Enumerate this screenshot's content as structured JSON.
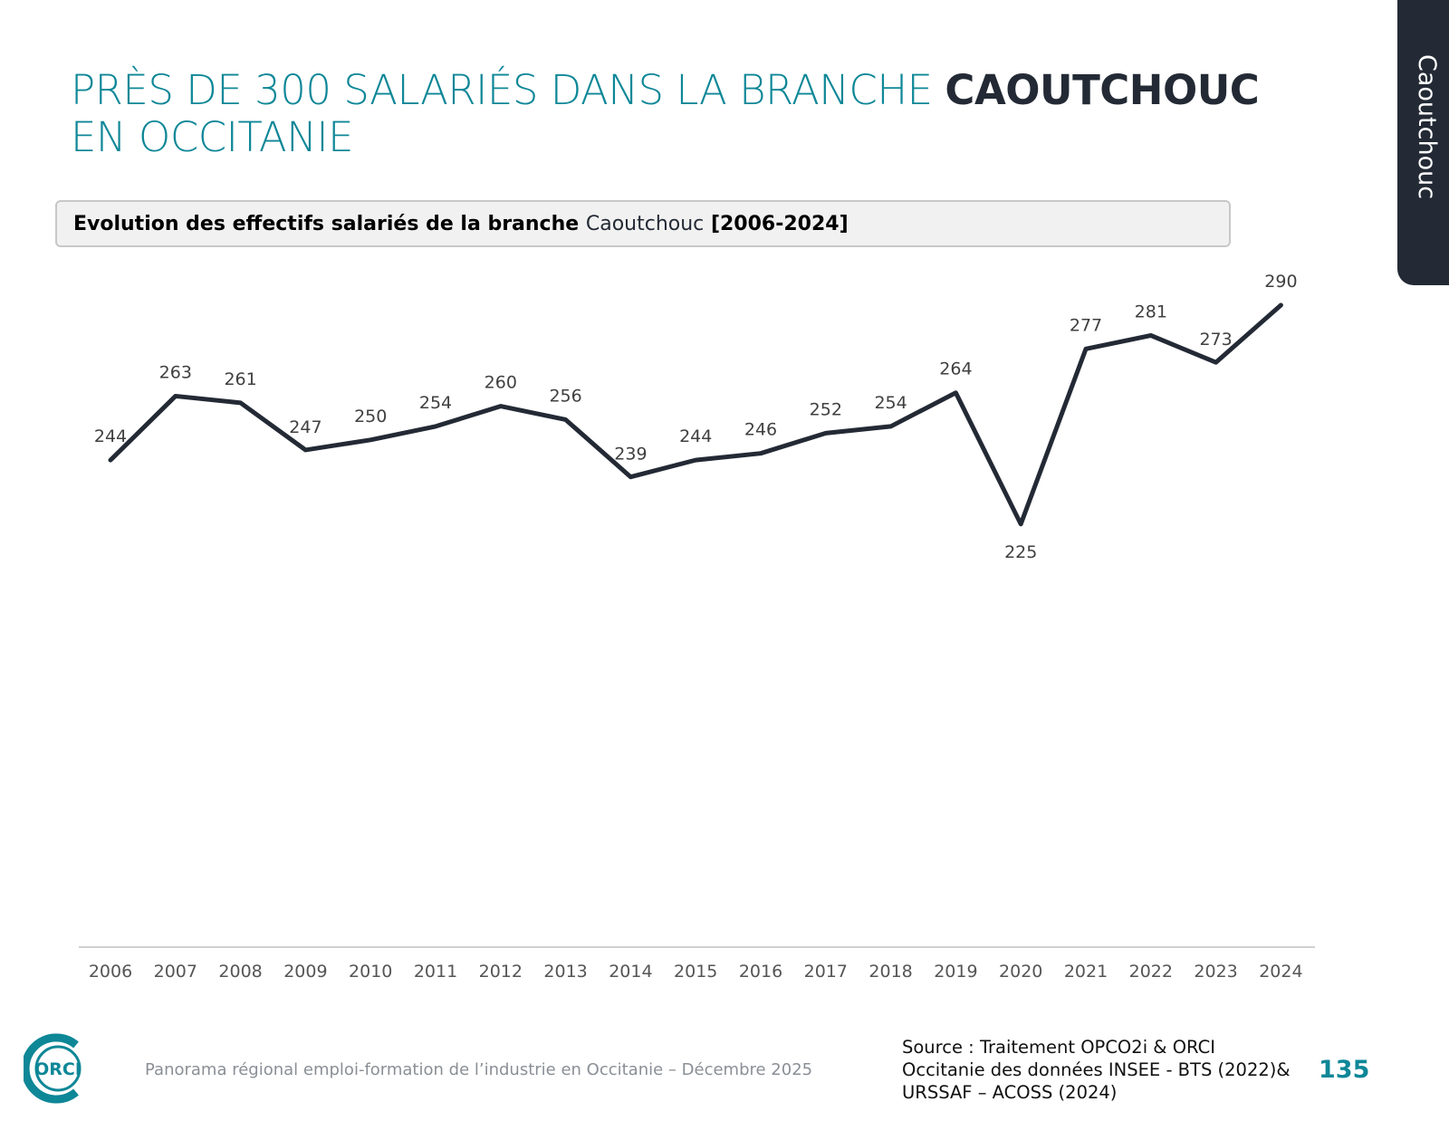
{
  "header": {
    "title_part1": "PRÈS DE 300 SALARIÉS DANS LA BRANCHE ",
    "title_bold": "CAOUTCHOUC",
    "title_part2": " EN OCCITANIE"
  },
  "side_tab": {
    "label": "Caoutchouc"
  },
  "subtitle": {
    "part1": "Evolution des effectifs salariés de la branche ",
    "highlight": "Caoutchouc",
    "part2": " [2006-2024]"
  },
  "chart_data": {
    "type": "line",
    "categories": [
      "2006",
      "2007",
      "2008",
      "2009",
      "2010",
      "2011",
      "2012",
      "2013",
      "2014",
      "2015",
      "2016",
      "2017",
      "2018",
      "2019",
      "2020",
      "2021",
      "2022",
      "2023",
      "2024"
    ],
    "values": [
      244,
      263,
      261,
      247,
      250,
      254,
      260,
      256,
      239,
      244,
      246,
      252,
      254,
      264,
      225,
      277,
      281,
      273,
      290
    ],
    "data_labels": true,
    "grid": false,
    "y_axis_visible": false,
    "line_color": "#232a35"
  },
  "footer": {
    "text": "Panorama régional emploi-formation de l’industrie en Occitanie – Décembre 2025",
    "source": [
      "Source : Traitement OPCO2i & ORCI",
      "Occitanie des données  INSEE - BTS (2022)&",
      "URSSAF – ACOSS (2024)"
    ],
    "page_number": "135",
    "logo_text": "ORCI"
  },
  "colors": {
    "accent": "#0e8797",
    "dark": "#232a35"
  }
}
